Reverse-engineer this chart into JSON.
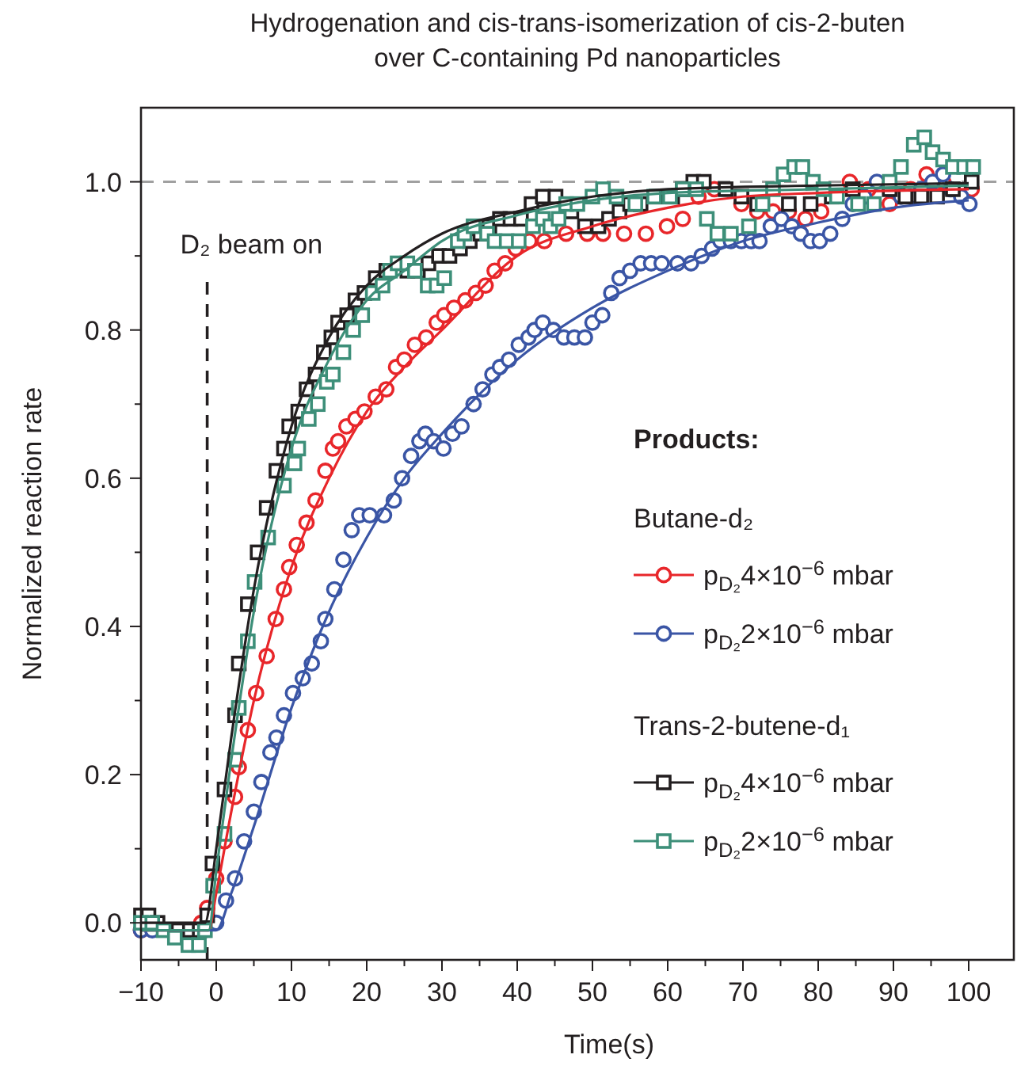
{
  "chart_data": {
    "type": "scatter",
    "title": "Hydrogenation and cis-trans-isomerization of cis-2-buten\nover C-containing Pd nanoparticles",
    "xlabel": "Time(s)",
    "ylabel": "Normalized reaction rate",
    "legend_title": "Products:",
    "annotations": [
      "Butane-d₂",
      "Trans-2-butene-d₁"
    ],
    "legend": "right",
    "xlim": [
      -10,
      106
    ],
    "ylim": [
      -0.05,
      1.1
    ],
    "xticks": [
      -10,
      {
        "value": -5,
        "label": null
      },
      0,
      {
        "value": 5,
        "label": null
      },
      10,
      {
        "value": 15,
        "label": null
      },
      20,
      {
        "value": 25,
        "label": null
      },
      30,
      {
        "value": 35,
        "label": null
      },
      40,
      {
        "value": 45,
        "label": null
      },
      50,
      {
        "value": 55,
        "label": null
      },
      60,
      {
        "value": 65,
        "label": null
      },
      70,
      {
        "value": 75,
        "label": null
      },
      80,
      {
        "value": 85,
        "label": null
      },
      90,
      {
        "value": 95,
        "label": null
      },
      100
    ],
    "yticks": [
      {
        "value": 0,
        "label": "0.0"
      },
      {
        "value": 0.1,
        "label": null
      },
      {
        "value": 0.2,
        "label": "0.2"
      },
      {
        "value": 0.3,
        "label": null
      },
      {
        "value": 0.4,
        "label": "0.4"
      },
      {
        "value": 0.5,
        "label": null
      },
      {
        "value": 0.6,
        "label": "0.6"
      },
      {
        "value": 0.7,
        "label": null
      },
      {
        "value": 0.8,
        "label": "0.8"
      },
      {
        "value": 0.9,
        "label": null
      },
      {
        "value": 1.0,
        "label": "1.0"
      }
    ],
    "ref_lines": [
      {
        "axis": "y",
        "value": 1.0,
        "color": "#a0a0a0",
        "line_style": "dashed"
      },
      {
        "axis": "x",
        "value": -1.2,
        "label": "D₂ beam on",
        "color": "#231f20",
        "line_style": "dashed"
      }
    ],
    "series": [
      {
        "name": "p$_{D₂}$4×10$^{−6}$ mbar",
        "marker": "circle",
        "color": "#e8262a",
        "x": [
          -10,
          -2,
          -1.2,
          0,
          1.1,
          2.5,
          3.0,
          4.2,
          5.3,
          6.7,
          7.9,
          9.0,
          9.7,
          10.7,
          12.0,
          13.2,
          14.5,
          15.5,
          16.2,
          17.3,
          18.5,
          19.7,
          21.2,
          22.6,
          23.9,
          25.0,
          26.4,
          27.9,
          29.3,
          30.3,
          31.6,
          33.1,
          34.5,
          35.8,
          37.0,
          38.4,
          39.8,
          41.6,
          43.6,
          46.5,
          49.3,
          51.4,
          54.2,
          57.1,
          59.9,
          62.0,
          64.1,
          66.2,
          69.8,
          71.9,
          74.0,
          76.1,
          78.3,
          80.4,
          84.2,
          86.7,
          89.5,
          92.3,
          94.4,
          96.6,
          100.4
        ],
        "values": [
          -0.01,
          0,
          0.02,
          0.06,
          0.11,
          0.17,
          0.21,
          0.26,
          0.31,
          0.36,
          0.41,
          0.45,
          0.48,
          0.51,
          0.54,
          0.57,
          0.61,
          0.64,
          0.65,
          0.67,
          0.68,
          0.69,
          0.71,
          0.72,
          0.75,
          0.76,
          0.78,
          0.79,
          0.81,
          0.82,
          0.83,
          0.84,
          0.85,
          0.86,
          0.88,
          0.89,
          0.91,
          0.92,
          0.92,
          0.93,
          0.93,
          0.93,
          0.93,
          0.93,
          0.94,
          0.95,
          0.98,
          0.99,
          0.97,
          0.96,
          0.96,
          0.96,
          0.95,
          0.96,
          1.0,
          0.99,
          0.97,
          0.99,
          1.01,
          1.0,
          0.99
        ]
      },
      {
        "name": "p$_{D₂}$2×10$^{−6}$ mbar",
        "marker": "circle",
        "color": "#3a55a5",
        "x": [
          -10,
          -8.5,
          0,
          1.3,
          2.5,
          3.7,
          5.0,
          6.0,
          7.2,
          8.0,
          9.0,
          10.2,
          11.5,
          12.7,
          13.9,
          14.5,
          15.7,
          16.9,
          18.0,
          19.0,
          20.4,
          22.3,
          23.6,
          24.7,
          25.9,
          27.0,
          27.8,
          28.9,
          30.2,
          31.4,
          32.6,
          34.2,
          35.4,
          36.7,
          37.7,
          38.9,
          40.2,
          41.5,
          42.3,
          43.4,
          44.8,
          46.2,
          47.6,
          49.0,
          50.0,
          51.3,
          52.5,
          53.6,
          55.0,
          56.4,
          57.8,
          59.2,
          61.3,
          63.1,
          64.5,
          65.9,
          67.0,
          68.4,
          69.8,
          71.1,
          72.2,
          73.7,
          75.1,
          76.5,
          77.7,
          79.0,
          80.2,
          81.6,
          83.2,
          84.6,
          86.1,
          87.8,
          89.5,
          91.0,
          92.3,
          93.7,
          95.2,
          96.6,
          97.6,
          99.0,
          100.1
        ],
        "values": [
          -0.01,
          -0.01,
          0,
          0.03,
          0.06,
          0.11,
          0.15,
          0.19,
          0.23,
          0.25,
          0.28,
          0.31,
          0.33,
          0.35,
          0.38,
          0.41,
          0.45,
          0.49,
          0.53,
          0.55,
          0.55,
          0.55,
          0.57,
          0.6,
          0.63,
          0.65,
          0.66,
          0.65,
          0.64,
          0.66,
          0.67,
          0.7,
          0.72,
          0.74,
          0.75,
          0.76,
          0.78,
          0.79,
          0.8,
          0.81,
          0.8,
          0.79,
          0.79,
          0.79,
          0.81,
          0.82,
          0.85,
          0.87,
          0.88,
          0.89,
          0.89,
          0.89,
          0.89,
          0.89,
          0.9,
          0.91,
          0.92,
          0.92,
          0.92,
          0.92,
          0.92,
          0.94,
          0.95,
          0.94,
          0.93,
          0.92,
          0.92,
          0.93,
          0.95,
          0.97,
          0.98,
          1.0,
          0.99,
          0.98,
          0.98,
          0.99,
          1.0,
          1.01,
          0.99,
          0.98,
          0.97
        ]
      },
      {
        "name": "p$_{D₂}$4×10$^{−6}$ mbar",
        "marker": "square",
        "color": "#231f20",
        "x": [
          -10,
          -9,
          -7.8,
          -5,
          -3.5,
          -2.2,
          -1.2,
          -0.5,
          1.1,
          2.5,
          3.0,
          4.2,
          5.5,
          6.7,
          8.0,
          9.0,
          9.7,
          10.9,
          12.0,
          13.2,
          14.3,
          15.3,
          16.2,
          17.4,
          18.5,
          19.7,
          21.2,
          22.6,
          25.4,
          26.8,
          28.2,
          29.6,
          31.0,
          32.4,
          33.7,
          35.1,
          36.3,
          37.7,
          39.1,
          40.5,
          41.9,
          43.4,
          45.1,
          47.2,
          49.0,
          50.8,
          52.2,
          53.6,
          55.0,
          56.4,
          58.5,
          60.6,
          62.0,
          63.4,
          64.8,
          67.7,
          69.8,
          71.9,
          76.1,
          79.0,
          81.8,
          84.6,
          89.5,
          91.6,
          93.7,
          95.8,
          97.9,
          100.4
        ],
        "values": [
          0.01,
          0.01,
          0,
          -0.01,
          -0.01,
          -0.01,
          0.01,
          0.08,
          0.18,
          0.28,
          0.35,
          0.43,
          0.5,
          0.56,
          0.61,
          0.64,
          0.67,
          0.69,
          0.72,
          0.74,
          0.77,
          0.79,
          0.81,
          0.82,
          0.84,
          0.85,
          0.87,
          0.88,
          0.88,
          0.88,
          0.89,
          0.9,
          0.9,
          0.91,
          0.92,
          0.93,
          0.94,
          0.95,
          0.95,
          0.95,
          0.97,
          0.98,
          0.98,
          0.96,
          0.94,
          0.94,
          0.95,
          0.96,
          0.97,
          0.97,
          0.98,
          0.98,
          0.99,
          1.0,
          1.0,
          0.99,
          0.98,
          0.97,
          0.97,
          0.97,
          0.98,
          0.99,
          0.99,
          0.98,
          0.98,
          0.98,
          0.99,
          1.0
        ]
      },
      {
        "name": "p$_{D₂}$2×10$^{−6}$ mbar",
        "marker": "square",
        "color": "#3d8f79",
        "x": [
          -10,
          -8.5,
          -7,
          -5.5,
          -3.7,
          -2.3,
          -1.5,
          -0.4,
          1.1,
          2.5,
          3.0,
          4.2,
          5.1,
          6.9,
          9.0,
          10.4,
          10.9,
          12.3,
          13.5,
          14.7,
          15.5,
          16.9,
          18.2,
          19.4,
          20.8,
          22.1,
          23.1,
          24.1,
          25.4,
          26.4,
          28.1,
          29.3,
          30.3,
          32.1,
          33.0,
          34.2,
          36.0,
          37.0,
          38.6,
          40.2,
          42.1,
          43.4,
          44.4,
          45.5,
          46.5,
          48.0,
          50.0,
          51.4,
          53.2,
          55.7,
          58.2,
          60.3,
          62.0,
          63.8,
          65.2,
          66.6,
          68.4,
          70.8,
          72.6,
          74.0,
          75.4,
          76.8,
          77.9,
          79.3,
          80.7,
          82.5,
          85.3,
          87.4,
          89.5,
          91.0,
          92.7,
          94.1,
          95.2,
          96.6,
          97.9,
          99.4,
          100.6
        ],
        "values": [
          0,
          0,
          -0.01,
          -0.02,
          -0.03,
          -0.03,
          -0.01,
          0.05,
          0.12,
          0.22,
          0.29,
          0.38,
          0.46,
          0.52,
          0.59,
          0.62,
          0.64,
          0.68,
          0.7,
          0.73,
          0.74,
          0.77,
          0.8,
          0.82,
          0.85,
          0.86,
          0.88,
          0.89,
          0.89,
          0.88,
          0.86,
          0.86,
          0.87,
          0.92,
          0.93,
          0.94,
          0.93,
          0.92,
          0.92,
          0.92,
          0.94,
          0.95,
          0.94,
          0.95,
          0.97,
          0.97,
          0.98,
          0.99,
          0.98,
          0.97,
          0.98,
          0.98,
          0.99,
          0.99,
          0.95,
          0.93,
          0.93,
          0.94,
          0.97,
          0.99,
          1.01,
          1.02,
          1.02,
          1.0,
          0.99,
          0.98,
          0.97,
          0.97,
          1.0,
          1.02,
          1.05,
          1.06,
          1.04,
          1.03,
          1.02,
          1.02,
          1.02
        ]
      },
      {
        "type": "line",
        "color": "#e8262a",
        "x": [
          -10,
          -1,
          0,
          2,
          5,
          10,
          15,
          20,
          25,
          30,
          40,
          50,
          60,
          70,
          80,
          100
        ],
        "values": [
          -0.01,
          -0.01,
          0.04,
          0.15,
          0.3,
          0.48,
          0.6,
          0.69,
          0.75,
          0.8,
          0.9,
          0.94,
          0.965,
          0.98,
          0.985,
          0.99
        ]
      },
      {
        "type": "line",
        "color": "#3a55a5",
        "x": [
          -10,
          0,
          2,
          5,
          10,
          15,
          20,
          25,
          30,
          40,
          50,
          60,
          70,
          80,
          90,
          100
        ],
        "values": [
          -0.01,
          -0.01,
          0.04,
          0.13,
          0.29,
          0.42,
          0.52,
          0.6,
          0.66,
          0.76,
          0.83,
          0.88,
          0.92,
          0.945,
          0.965,
          0.975
        ]
      },
      {
        "type": "line",
        "color": "#231f20",
        "x": [
          -10,
          -1.5,
          0,
          2,
          5,
          10,
          15,
          20,
          25,
          30,
          40,
          50,
          60,
          80,
          100
        ],
        "values": [
          0,
          0,
          0.1,
          0.25,
          0.45,
          0.67,
          0.79,
          0.86,
          0.9,
          0.93,
          0.96,
          0.98,
          0.99,
          0.995,
          0.998
        ]
      },
      {
        "type": "line",
        "color": "#3d8f79",
        "x": [
          -10,
          -1,
          0,
          2,
          5,
          10,
          15,
          20,
          25,
          30,
          40,
          50,
          60,
          80,
          100
        ],
        "values": [
          -0.01,
          -0.01,
          0.07,
          0.22,
          0.42,
          0.64,
          0.76,
          0.84,
          0.88,
          0.92,
          0.955,
          0.975,
          0.985,
          0.99,
          0.995
        ]
      }
    ]
  }
}
